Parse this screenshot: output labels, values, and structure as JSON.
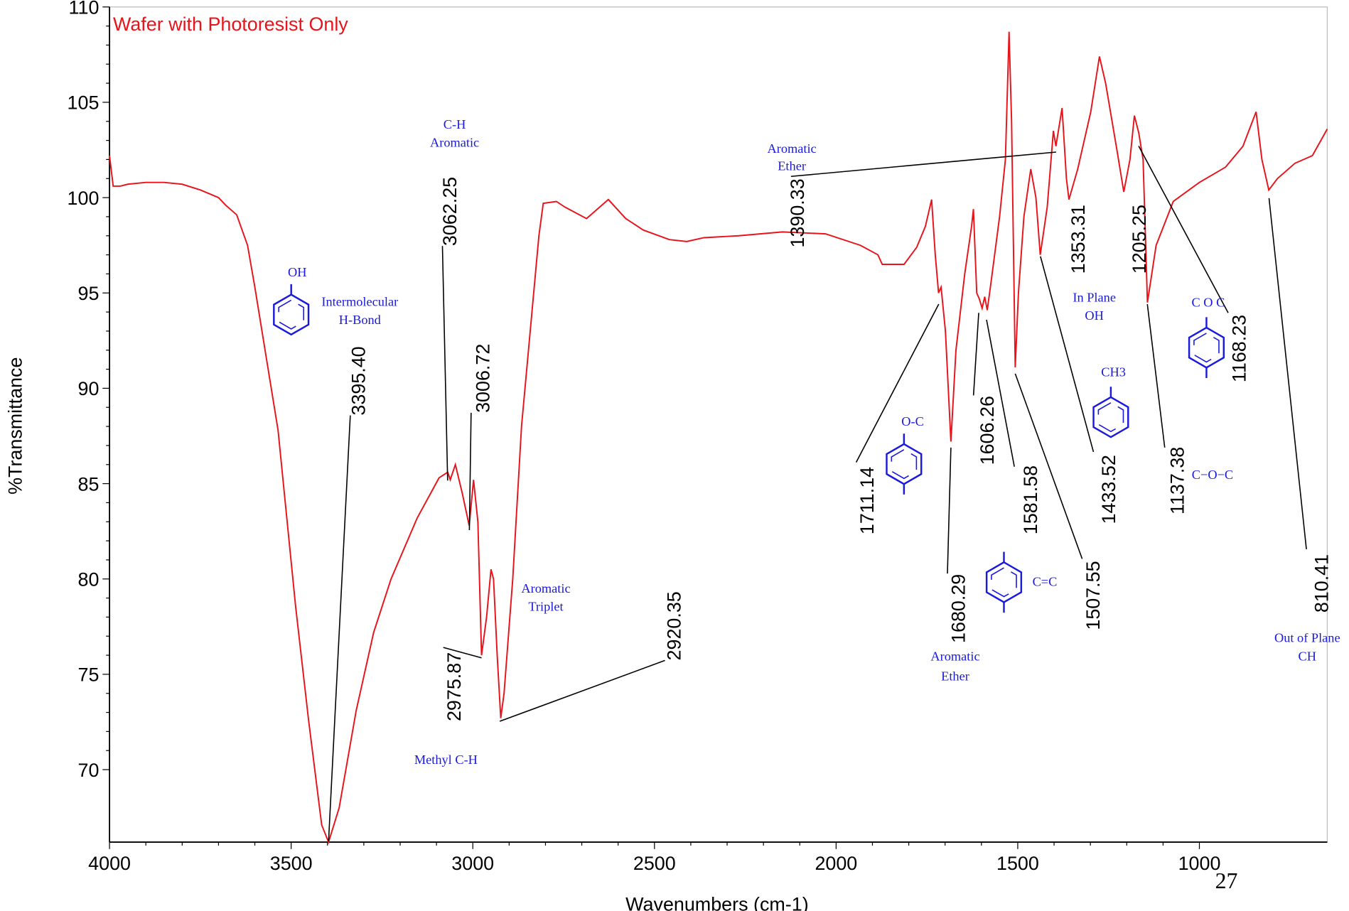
{
  "chart_data": {
    "type": "line",
    "xlabel": "Wavenumbers (cm-1)",
    "ylabel": "%Transmittance",
    "xlim": [
      4000,
      648
    ],
    "ylim": [
      66.2,
      110
    ],
    "xticks": [
      4000,
      3500,
      3000,
      2500,
      2000,
      1500,
      1000
    ],
    "yticks": [
      70,
      75,
      80,
      85,
      90,
      95,
      100,
      105,
      110
    ],
    "x": [
      4000,
      3990,
      3970,
      3950,
      3900,
      3850,
      3800,
      3750,
      3700,
      3680,
      3650,
      3620,
      3600,
      3536,
      3488,
      3452,
      3416,
      3397,
      3368,
      3321,
      3273,
      3225,
      3153,
      3093,
      3069,
      3062,
      3048,
      3029,
      3010,
      2998,
      2986,
      2976,
      2962,
      2950,
      2943,
      2933,
      2923,
      2914,
      2890,
      2866,
      2842,
      2818,
      2806,
      2770,
      2746,
      2687,
      2627,
      2579,
      2531,
      2459,
      2411,
      2364,
      2268,
      2148,
      2029,
      1933,
      1885,
      1873,
      1813,
      1778,
      1754,
      1737,
      1727,
      1718,
      1711,
      1699,
      1684,
      1670,
      1646,
      1627,
      1622,
      1613,
      1606,
      1598,
      1591,
      1584,
      1574,
      1550,
      1534,
      1524,
      1517,
      1507,
      1498,
      1483,
      1464,
      1450,
      1438,
      1419,
      1402,
      1395,
      1378,
      1366,
      1359,
      1335,
      1299,
      1275,
      1258,
      1227,
      1208,
      1191,
      1179,
      1167,
      1155,
      1143,
      1119,
      1072,
      1000,
      928,
      880,
      844,
      828,
      809,
      785,
      737,
      689,
      648
    ],
    "series": [
      {
        "name": "Wafer with Photoresist Only",
        "color": "#e8141c",
        "values": [
          102.2,
          100.6,
          100.6,
          100.7,
          100.8,
          100.8,
          100.7,
          100.4,
          100.0,
          99.6,
          99.1,
          97.5,
          95.3,
          87.8,
          78.6,
          72.6,
          67.1,
          66.2,
          68.0,
          73.1,
          77.2,
          80.0,
          83.2,
          85.3,
          85.6,
          85.2,
          86.0,
          84.5,
          82.8,
          85.2,
          83.0,
          76.0,
          78.0,
          80.5,
          80.0,
          76.0,
          72.7,
          74.0,
          80.0,
          88.0,
          93.0,
          98.0,
          99.7,
          99.8,
          99.5,
          98.9,
          99.9,
          98.9,
          98.3,
          97.8,
          97.7,
          97.9,
          98.0,
          98.2,
          98.1,
          97.5,
          97.0,
          96.5,
          96.5,
          97.4,
          98.5,
          99.9,
          97.0,
          95.0,
          95.3,
          93.0,
          87.2,
          92.0,
          96.0,
          98.5,
          99.4,
          95.0,
          94.7,
          94.2,
          94.8,
          94.1,
          95.5,
          99.0,
          102.0,
          108.7,
          104.0,
          91.1,
          95.0,
          99.0,
          101.5,
          100.0,
          97.0,
          99.5,
          103.5,
          102.7,
          104.7,
          101.0,
          99.9,
          101.5,
          104.5,
          107.4,
          106.0,
          102.5,
          100.3,
          102.0,
          104.3,
          103.4,
          102.0,
          94.5,
          97.5,
          99.8,
          100.8,
          101.6,
          102.7,
          104.5,
          102.0,
          100.4,
          101.0,
          101.8,
          102.2,
          103.6
        ]
      }
    ],
    "peak_labels": [
      "3395.40",
      "3062.25",
      "3006.72",
      "2975.87",
      "2920.35",
      "1390.33",
      "1711.14",
      "1680.29",
      "1606.26",
      "1581.58",
      "1507.55",
      "1433.52",
      "1353.31",
      "1205.25",
      "1168.23",
      "1137.38",
      "810.41"
    ],
    "annotations": [
      "C-H",
      "Aromatic",
      "Aromatic",
      "Ether",
      "OH",
      "Intermolecular",
      "H-Bond",
      "Aromatic",
      "Triplet",
      "Methyl C-H",
      "O-C",
      "Aromatic",
      "Ether",
      "C=C",
      "In Plane",
      "OH",
      "CH3",
      "C O C",
      "C−O−C",
      "Out of Plane",
      "CH"
    ],
    "page_number": "27"
  }
}
